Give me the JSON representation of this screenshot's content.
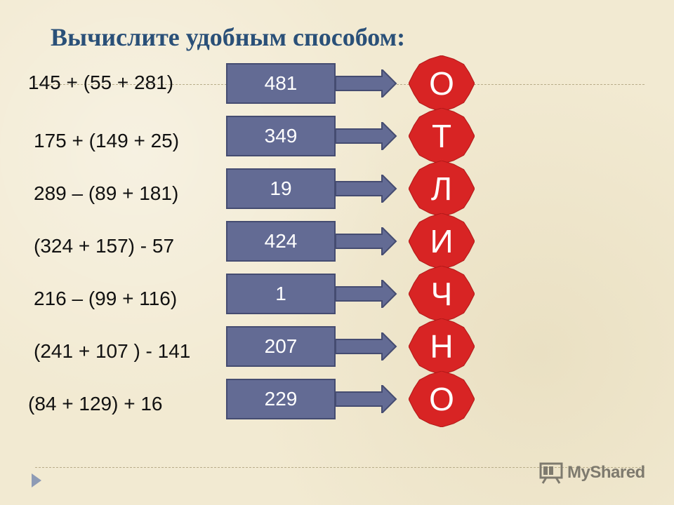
{
  "title": "Вычислите удобным способом:",
  "rows": [
    {
      "expression": "145 + (55 + 281)",
      "answer": "481",
      "letter": "О"
    },
    {
      "expression": "175 + (149 + 25)",
      "answer": "349",
      "letter": "Т"
    },
    {
      "expression": "289 – (89 + 181)",
      "answer": "19",
      "letter": "Л"
    },
    {
      "expression": "(324 + 157) - 57",
      "answer": "424",
      "letter": "И"
    },
    {
      "expression": "216 – (99 + 116)",
      "answer": "1",
      "letter": "Ч"
    },
    {
      "expression": "(241 + 107 ) - 141",
      "answer": "207",
      "letter": "Н"
    },
    {
      "expression": "(84 + 129) + 16",
      "answer": "229",
      "letter": "О"
    }
  ],
  "watermark": {
    "text": "MyShared",
    "icon": "presentation-board-icon"
  },
  "navigation": {
    "icon": "next-slide-triangle-icon"
  },
  "colors": {
    "title": "#2a5078",
    "answer_box": "#636b94",
    "arrow": "#636b94",
    "badge": "#d82424",
    "background": "#f2ead2"
  }
}
